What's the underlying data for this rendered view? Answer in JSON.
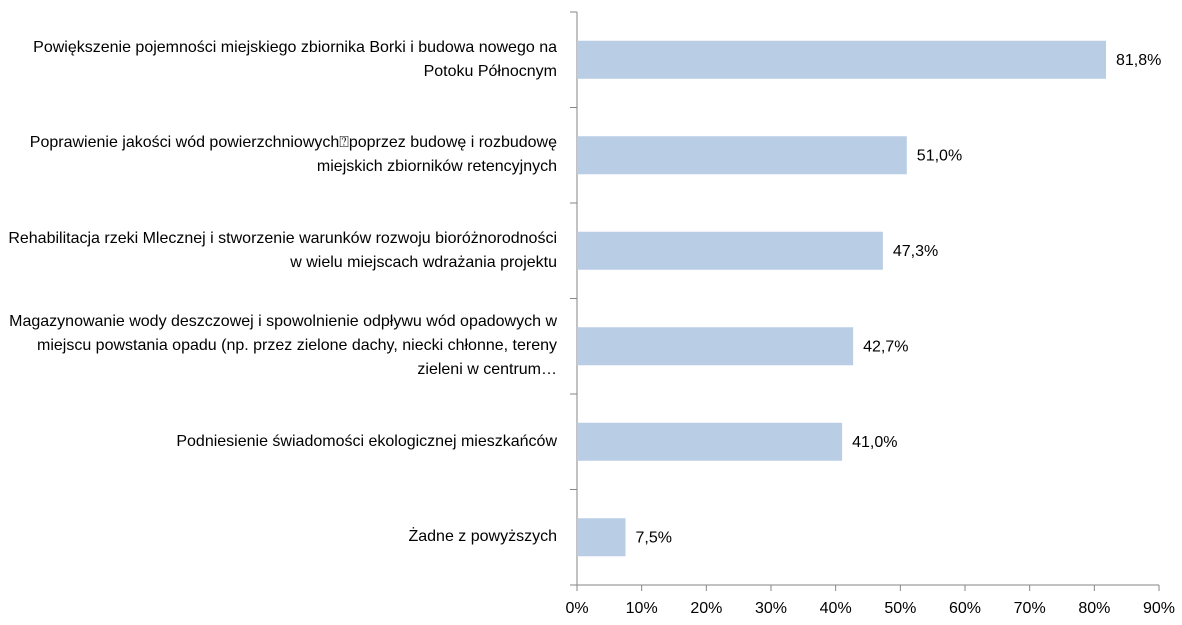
{
  "chart_data": {
    "type": "hbar",
    "categories": [
      "Powiększenie pojemności miejskiego zbiornika Borki i budowa nowego na Potoku Północnym",
      "Poprawienie jakości wód powierzchniowych⍰poprzez budowę i rozbudowę miejskich zbiorników retencyjnych",
      "Rehabilitacja rzeki Mlecznej i stworzenie warunków rozwoju bioróżnorodności w wielu miejscach wdrażania projektu",
      "Magazynowanie wody deszczowej i spowolnienie odpływu wód opadowych w miejscu powstania opadu (np. przez zielone dachy, niecki chłonne, tereny zieleni w centrum…",
      "Podniesienie świadomości ekologicznej mieszkańców",
      "Żadne z powyższych"
    ],
    "values": [
      81.8,
      51.0,
      47.3,
      42.7,
      41.0,
      7.5
    ],
    "value_labels": [
      "81,8%",
      "51,0%",
      "47,3%",
      "42,7%",
      "41,0%",
      "7,5%"
    ],
    "color": "#b9cde5",
    "xlim": [
      0,
      90
    ],
    "xticks": [
      {
        "value": 0,
        "label": "0%"
      },
      {
        "value": 10,
        "label": "10%"
      },
      {
        "value": 20,
        "label": "20%"
      },
      {
        "value": 30,
        "label": "30%"
      },
      {
        "value": 40,
        "label": "40%"
      },
      {
        "value": 50,
        "label": "50%"
      },
      {
        "value": 60,
        "label": "60%"
      },
      {
        "value": 70,
        "label": "70%"
      },
      {
        "value": 80,
        "label": "80%"
      },
      {
        "value": 90,
        "label": "90%"
      }
    ]
  }
}
